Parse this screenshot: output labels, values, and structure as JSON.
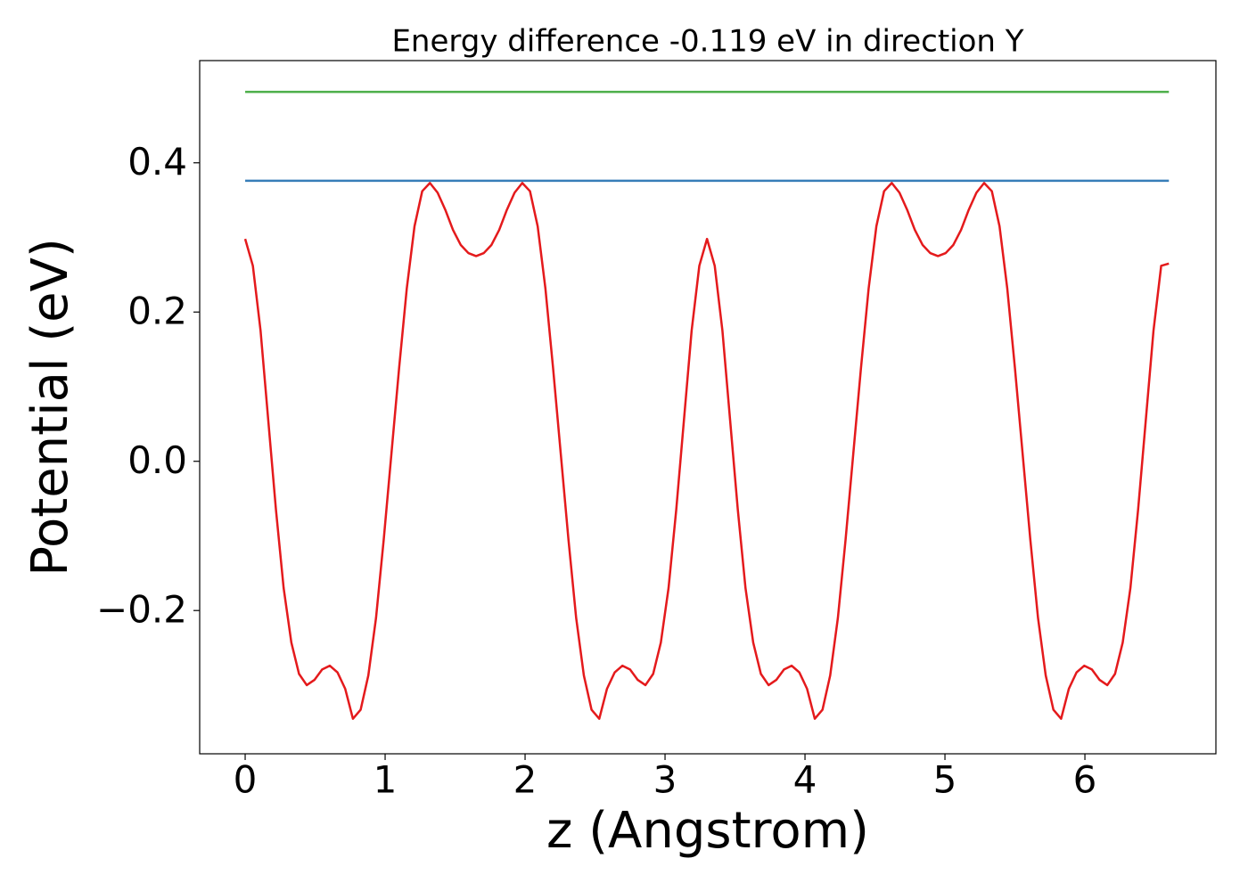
{
  "chart_data": {
    "type": "line",
    "title": "Energy difference -0.119 eV in direction Y",
    "xlabel": "z (Angstrom)",
    "ylabel": "Potential (eV)",
    "xlim": [
      -0.325,
      6.936
    ],
    "ylim": [
      -0.392,
      0.537
    ],
    "xticks": [
      0,
      1,
      2,
      3,
      4,
      5,
      6
    ],
    "yticks": [
      {
        "value": -0.2,
        "label": "−0.2"
      },
      {
        "value": 0,
        "label": "0.0"
      },
      0.2,
      0.4
    ],
    "grid": false,
    "series": [
      {
        "color": "#e41a1c",
        "x": [
          0,
          0.055,
          0.11,
          0.165,
          0.22,
          0.275,
          0.33,
          0.385,
          0.44,
          0.495,
          0.55,
          0.605,
          0.66,
          0.715,
          0.77,
          0.825,
          0.88,
          0.935,
          0.99,
          1.045,
          1.1,
          1.155,
          1.21,
          1.265,
          1.32,
          1.375,
          1.43,
          1.485,
          1.54,
          1.595,
          1.65,
          1.705,
          1.76,
          1.815,
          1.87,
          1.925,
          1.98,
          2.035,
          2.09,
          2.145,
          2.2,
          2.255,
          2.31,
          2.365,
          2.42,
          2.475,
          2.53,
          2.585,
          2.64,
          2.695,
          2.75,
          2.805,
          2.86,
          2.915,
          2.97,
          3.025,
          3.08,
          3.135,
          3.19,
          3.245,
          3.3,
          3.355,
          3.41,
          3.465,
          3.52,
          3.575,
          3.63,
          3.685,
          3.74,
          3.795,
          3.85,
          3.905,
          3.96,
          4.015,
          4.07,
          4.125,
          4.18,
          4.235,
          4.29,
          4.345,
          4.4,
          4.455,
          4.51,
          4.565,
          4.62,
          4.675,
          4.73,
          4.785,
          4.84,
          4.895,
          4.95,
          5.005,
          5.06,
          5.115,
          5.17,
          5.225,
          5.28,
          5.335,
          5.39,
          5.445,
          5.5,
          5.555,
          5.61,
          5.665,
          5.72,
          5.775,
          5.83,
          5.885,
          5.94,
          5.995,
          6.05,
          6.105,
          6.16,
          6.215,
          6.27,
          6.325,
          6.38,
          6.435,
          6.49,
          6.545,
          6.6
        ],
        "values": [
          0.298,
          0.262,
          0.175,
          0.055,
          -0.065,
          -0.17,
          -0.243,
          -0.285,
          -0.3,
          -0.293,
          -0.279,
          -0.274,
          -0.283,
          -0.305,
          -0.345,
          -0.333,
          -0.287,
          -0.21,
          -0.105,
          0.01,
          0.125,
          0.232,
          0.315,
          0.362,
          0.373,
          0.36,
          0.337,
          0.31,
          0.29,
          0.279,
          0.275,
          0.279,
          0.29,
          0.31,
          0.337,
          0.36,
          0.373,
          0.362,
          0.315,
          0.232,
          0.125,
          0.01,
          -0.105,
          -0.21,
          -0.287,
          -0.333,
          -0.345,
          -0.305,
          -0.283,
          -0.274,
          -0.279,
          -0.293,
          -0.3,
          -0.285,
          -0.243,
          -0.17,
          -0.065,
          0.055,
          0.175,
          0.262,
          0.298,
          0.262,
          0.175,
          0.055,
          -0.065,
          -0.17,
          -0.243,
          -0.285,
          -0.3,
          -0.293,
          -0.279,
          -0.274,
          -0.283,
          -0.305,
          -0.345,
          -0.333,
          -0.287,
          -0.21,
          -0.105,
          0.01,
          0.125,
          0.232,
          0.315,
          0.362,
          0.373,
          0.36,
          0.337,
          0.31,
          0.29,
          0.279,
          0.275,
          0.279,
          0.29,
          0.31,
          0.337,
          0.36,
          0.373,
          0.362,
          0.315,
          0.232,
          0.125,
          0.01,
          -0.105,
          -0.21,
          -0.287,
          -0.333,
          -0.345,
          -0.305,
          -0.283,
          -0.274,
          -0.279,
          -0.293,
          -0.3,
          -0.285,
          -0.243,
          -0.17,
          -0.065,
          0.055,
          0.175,
          0.262,
          0.265
        ]
      },
      {
        "color": "#377eb8",
        "x": [
          0,
          6.6
        ],
        "values": [
          0.376,
          0.376
        ]
      },
      {
        "color": "#4daf4a",
        "x": [
          0,
          6.6
        ],
        "values": [
          0.495,
          0.495
        ]
      }
    ]
  }
}
